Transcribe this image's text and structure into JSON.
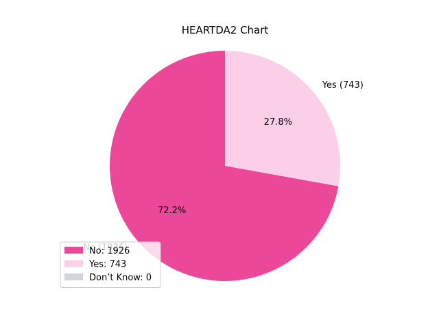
{
  "chart_data": {
    "type": "pie",
    "title": "HEARTDA2 Chart",
    "start_angle_deg": 90,
    "direction": "clockwise",
    "legend_position": "lower-left",
    "slices": [
      {
        "label": "Yes",
        "value": 743,
        "color": "#fbcfe8",
        "outer_label": "Yes (743)",
        "pct_label": "27.8%",
        "legend": "Yes: 743"
      },
      {
        "label": "No",
        "value": 1926,
        "color": "#ec4899",
        "outer_label": "No (1926)",
        "pct_label": "72.2%",
        "legend": "No: 1926"
      },
      {
        "label": "Don’t Know",
        "value": 0,
        "color": "#d1d5db",
        "outer_label": "",
        "pct_label": "",
        "legend": "Don’t Know: 0"
      }
    ],
    "legend_order": [
      "No",
      "Yes",
      "Don’t Know"
    ]
  }
}
